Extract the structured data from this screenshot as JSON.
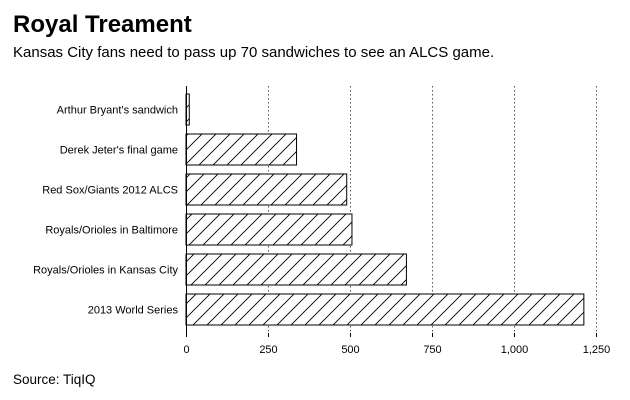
{
  "chart_data": {
    "type": "bar",
    "orientation": "horizontal",
    "title": "Royal Treament",
    "subtitle": "Kansas City fans need to pass up 70 sandwiches to see an ALCS game.",
    "source": "Source: TiqIQ",
    "xlabel": "",
    "ylabel": "",
    "categories": [
      "Arthur Bryant's sandwich",
      "Derek Jeter's final game",
      "Red Sox/Giants 2012 ALCS",
      "Royals/Orioles in Baltimore",
      "Royals/Orioles in Kansas City",
      "2013 World Series"
    ],
    "values": [
      10,
      337,
      490,
      506,
      672,
      1213
    ],
    "xlim": [
      0,
      1250
    ],
    "xticks": [
      0,
      250,
      500,
      750,
      1000,
      1250
    ],
    "xtick_labels": [
      "0",
      "250",
      "500",
      "750",
      "1,000",
      "1,250"
    ],
    "grid": "vertical dotted",
    "bar_fill": "diagonal hatch",
    "colors": {
      "bar_stroke": "#000000",
      "hatch": "#000000",
      "grid": "#555555",
      "background": "#ffffff"
    }
  }
}
